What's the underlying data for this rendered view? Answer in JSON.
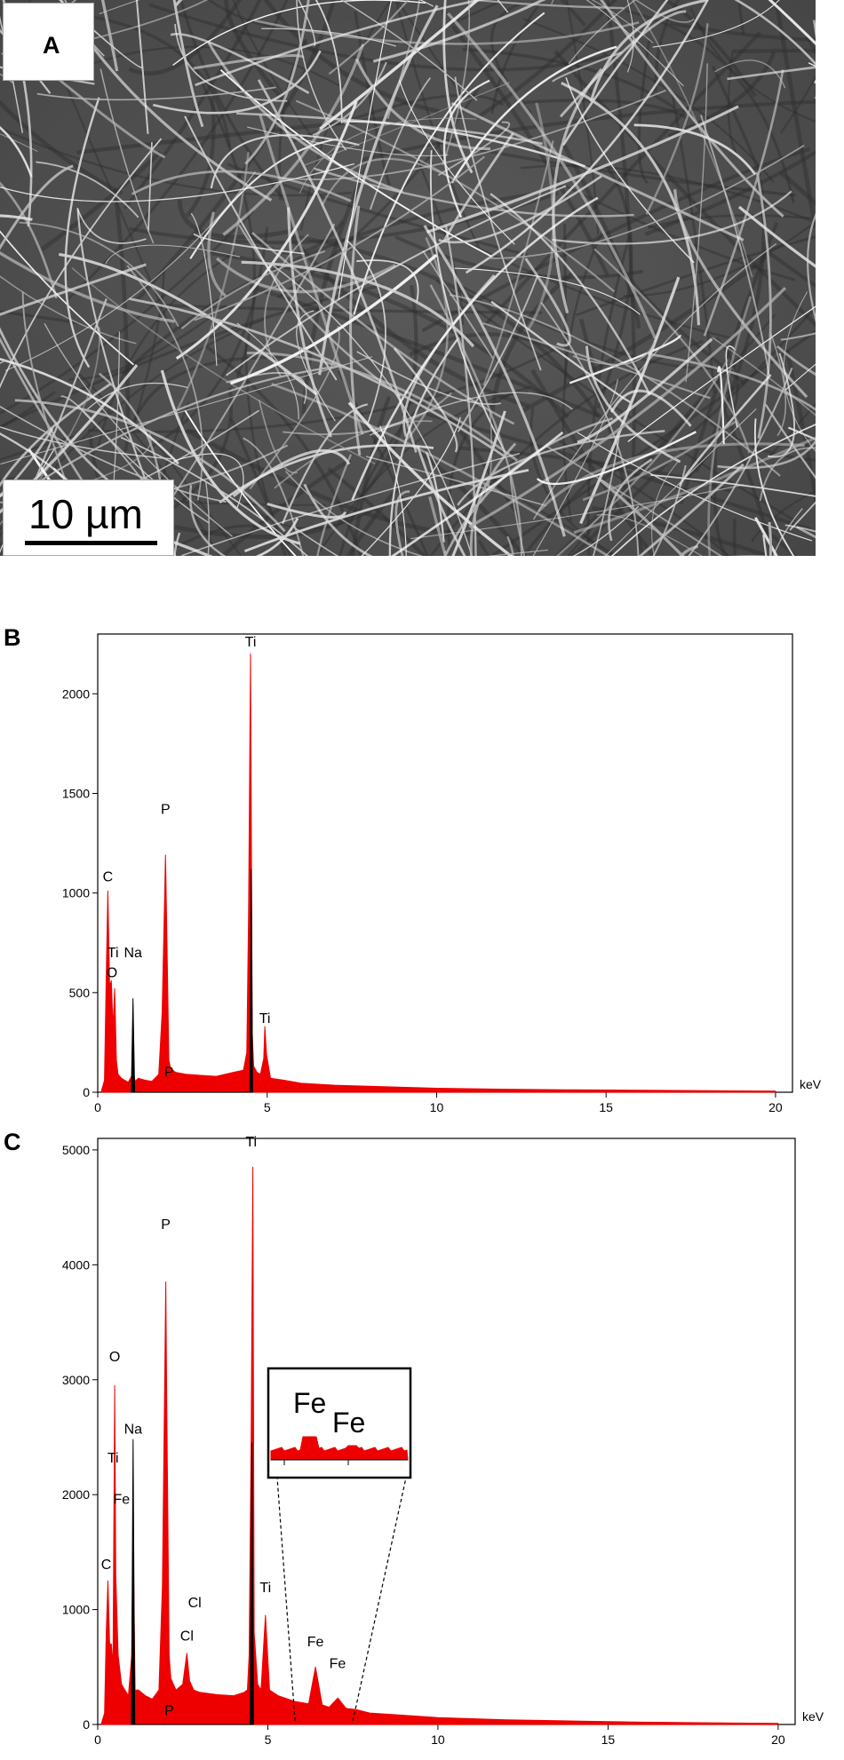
{
  "panels": {
    "a": {
      "label": "A",
      "scale_bar": "10 µm"
    },
    "b": {
      "label": "B"
    },
    "c": {
      "label": "C"
    }
  },
  "chart_data": [
    {
      "type": "area",
      "panel": "B",
      "xlabel": "keV",
      "ylabel": "",
      "xlim": [
        0,
        20.5
      ],
      "ylim": [
        0,
        2300
      ],
      "x_ticks": [
        0,
        5,
        10,
        15,
        20
      ],
      "y_ticks": [
        0,
        500,
        1000,
        1500,
        2000
      ],
      "series": [
        {
          "color": "#ee0000",
          "x": [
            0.1,
            0.2,
            0.25,
            0.3,
            0.35,
            0.4,
            0.45,
            0.5,
            0.55,
            0.6,
            0.7,
            0.8,
            0.9,
            1.0,
            1.04,
            1.1,
            1.2,
            1.4,
            1.6,
            1.8,
            1.9,
            2.0,
            2.03,
            2.1,
            2.15,
            2.3,
            2.6,
            3.0,
            3.5,
            4.0,
            4.3,
            4.4,
            4.45,
            4.51,
            4.56,
            4.6,
            4.7,
            4.8,
            4.9,
            4.93,
            4.98,
            5.1,
            5.5,
            6.0,
            7.0,
            8.0,
            9.0,
            10.0,
            12.0,
            14.0,
            16.0,
            18.0,
            20.0
          ],
          "y": [
            0,
            60,
            560,
            1010,
            530,
            560,
            320,
            520,
            160,
            90,
            70,
            60,
            50,
            80,
            120,
            55,
            70,
            60,
            55,
            90,
            400,
            1190,
            900,
            160,
            120,
            100,
            90,
            85,
            80,
            100,
            110,
            200,
            900,
            2200,
            300,
            130,
            100,
            90,
            170,
            330,
            190,
            70,
            60,
            45,
            35,
            30,
            25,
            20,
            15,
            12,
            10,
            8,
            6
          ]
        },
        {
          "color": "#000000",
          "x": [
            0.99,
            1.04,
            1.09,
            4.49,
            4.53,
            4.57
          ],
          "y": [
            0,
            470,
            0,
            0,
            1120,
            0
          ]
        }
      ],
      "annotations": [
        {
          "text": "C",
          "x": 0.3,
          "y": 1040
        },
        {
          "text": "Ti",
          "x": 0.45,
          "y": 660
        },
        {
          "text": "Na",
          "x": 1.04,
          "y": 660
        },
        {
          "text": "O",
          "x": 0.42,
          "y": 560
        },
        {
          "text": "P",
          "x": 2.0,
          "y": 1380
        },
        {
          "text": "P",
          "x": 2.1,
          "y": 60
        },
        {
          "text": "Ti",
          "x": 4.51,
          "y": 2220
        },
        {
          "text": "Ti",
          "x": 4.93,
          "y": 330
        }
      ],
      "units_label": "keV"
    },
    {
      "type": "area",
      "panel": "C",
      "xlabel": "keV",
      "ylabel": "",
      "xlim": [
        0,
        20.5
      ],
      "ylim": [
        0,
        5100
      ],
      "x_ticks": [
        0,
        5,
        10,
        15,
        20
      ],
      "y_ticks": [
        0,
        1000,
        2000,
        3000,
        4000,
        5000
      ],
      "series": [
        {
          "color": "#ee0000",
          "x": [
            0.1,
            0.2,
            0.25,
            0.3,
            0.35,
            0.4,
            0.45,
            0.5,
            0.53,
            0.6,
            0.7,
            0.8,
            0.9,
            1.0,
            1.04,
            1.1,
            1.2,
            1.4,
            1.6,
            1.8,
            1.9,
            2.0,
            2.03,
            2.1,
            2.15,
            2.3,
            2.5,
            2.62,
            2.7,
            2.82,
            3.0,
            3.5,
            4.0,
            4.3,
            4.4,
            4.45,
            4.51,
            4.56,
            4.6,
            4.7,
            4.8,
            4.93,
            5.05,
            5.3,
            5.8,
            6.2,
            6.4,
            6.6,
            6.8,
            7.06,
            7.3,
            7.6,
            8.0,
            9.0,
            10.0,
            12.0,
            14.0,
            16.0,
            18.0,
            20.0
          ],
          "y": [
            0,
            100,
            800,
            1250,
            700,
            700,
            500,
            2950,
            1300,
            600,
            350,
            300,
            250,
            600,
            1700,
            300,
            300,
            250,
            220,
            300,
            1200,
            3850,
            2800,
            600,
            400,
            300,
            350,
            620,
            380,
            300,
            280,
            260,
            250,
            280,
            300,
            600,
            2500,
            4850,
            800,
            350,
            300,
            950,
            300,
            250,
            200,
            180,
            500,
            170,
            150,
            230,
            140,
            130,
            100,
            80,
            60,
            40,
            30,
            20,
            15,
            10
          ]
        },
        {
          "color": "#000000",
          "x": [
            0.99,
            1.04,
            1.09,
            4.48,
            4.53,
            4.58
          ],
          "y": [
            0,
            2480,
            0,
            0,
            2450,
            0
          ]
        }
      ],
      "annotations": [
        {
          "text": "C",
          "x": 0.25,
          "y": 1320
        },
        {
          "text": "O",
          "x": 0.5,
          "y": 3130
        },
        {
          "text": "Ti",
          "x": 0.45,
          "y": 2250
        },
        {
          "text": "Na",
          "x": 1.04,
          "y": 2500
        },
        {
          "text": "Fe",
          "x": 0.7,
          "y": 1890
        },
        {
          "text": "P",
          "x": 2.0,
          "y": 4280
        },
        {
          "text": "P",
          "x": 2.1,
          "y": 50
        },
        {
          "text": "Cl",
          "x": 2.85,
          "y": 990
        },
        {
          "text": "Cl",
          "x": 2.62,
          "y": 700
        },
        {
          "text": "Ti",
          "x": 4.51,
          "y": 5000
        },
        {
          "text": "Ti",
          "x": 4.93,
          "y": 1120
        },
        {
          "text": "Fe",
          "x": 6.4,
          "y": 650
        },
        {
          "text": "Fe",
          "x": 7.05,
          "y": 460
        }
      ],
      "inset": {
        "labels": [
          "Fe",
          "Fe"
        ],
        "x_range": [
          5.8,
          7.5
        ]
      },
      "units_label": "keV"
    }
  ]
}
